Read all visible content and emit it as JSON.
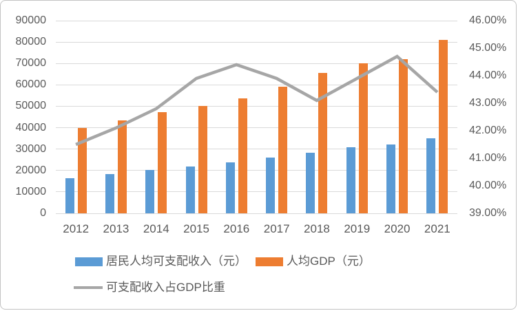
{
  "chart_data": {
    "type": "bar",
    "subtype": "combo-bar-line",
    "title": "",
    "categories": [
      "2012",
      "2013",
      "2014",
      "2015",
      "2016",
      "2017",
      "2018",
      "2019",
      "2020",
      "2021"
    ],
    "series": [
      {
        "name": "居民人均可支配收入（元）",
        "type": "bar",
        "axis": "left",
        "color": "#5B9BD5",
        "values": [
          16510,
          18311,
          20167,
          21966,
          23821,
          25974,
          28228,
          30733,
          32189,
          35128
        ]
      },
      {
        "name": "人均GDP（元）",
        "type": "bar",
        "axis": "left",
        "color": "#ED7D31",
        "values": [
          39771,
          43497,
          47173,
          50028,
          53680,
          59201,
          65534,
          70078,
          71965,
          80976
        ]
      },
      {
        "name": "可支配收入占GDP比重",
        "type": "line",
        "axis": "right",
        "color": "#A6A6A6",
        "values": [
          41.5,
          42.1,
          42.8,
          43.9,
          44.4,
          43.9,
          43.1,
          43.9,
          44.7,
          43.4
        ]
      }
    ],
    "left_axis": {
      "min": 0,
      "max": 90000,
      "step": 10000,
      "tick_labels": [
        "0",
        "10000",
        "20000",
        "30000",
        "40000",
        "50000",
        "60000",
        "70000",
        "80000",
        "90000"
      ]
    },
    "right_axis": {
      "min": 39,
      "max": 46,
      "step": 1,
      "tick_labels": [
        "39.00%",
        "40.00%",
        "41.00%",
        "42.00%",
        "43.00%",
        "44.00%",
        "45.00%",
        "46.00%"
      ]
    },
    "grid": true,
    "gridline_color": "#D9D9D9",
    "text_color": "#595959",
    "legend_position": "bottom"
  }
}
